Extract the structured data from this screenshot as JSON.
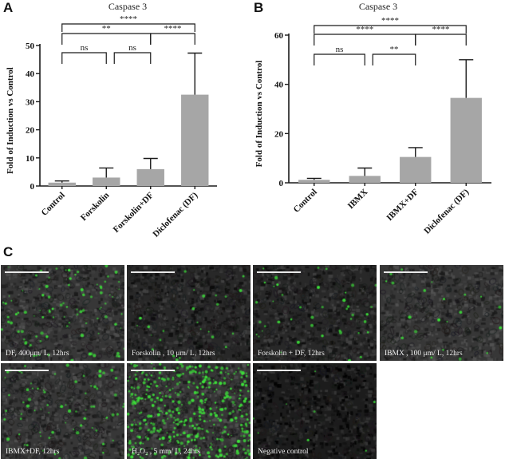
{
  "panels": {
    "a": "A",
    "b": "B",
    "c": "C"
  },
  "colors": {
    "bar": "#a6a6a6",
    "axis": "#1a1a1a",
    "fluorescence": "#3de03a"
  },
  "chart_data": [
    {
      "type": "bar",
      "title": "Caspase 3",
      "ylabel": "Fold of Induction vs Control",
      "xlabel": "",
      "ylim": [
        0,
        50
      ],
      "yticks": [
        0,
        10,
        20,
        30,
        40,
        50
      ],
      "categories": [
        "Control",
        "Forskolin",
        "Forskolin+DF",
        "Diclofenac (DF)"
      ],
      "values": [
        1.2,
        3.0,
        6.0,
        32.5
      ],
      "errors": [
        0.6,
        3.4,
        3.8,
        14.8
      ],
      "grid": false,
      "significance": [
        {
          "from": 0,
          "to": 1,
          "label": "ns",
          "level": 0
        },
        {
          "from": 1,
          "to": 2,
          "label": "ns",
          "level": 0
        },
        {
          "from": 0,
          "to": 2,
          "label": "**",
          "level": 1
        },
        {
          "from": 2,
          "to": 3,
          "label": "****",
          "level": 1
        },
        {
          "from": 0,
          "to": 3,
          "label": "****",
          "level": 2
        }
      ]
    },
    {
      "type": "bar",
      "title": "Caspase 3",
      "ylabel": "Fold of Induction vs Control",
      "xlabel": "",
      "ylim": [
        0,
        60
      ],
      "yticks": [
        0,
        20,
        40,
        60
      ],
      "categories": [
        "Control",
        "IBMX",
        "IBMX+DF",
        "Diclofenac (DF)"
      ],
      "values": [
        1.2,
        2.8,
        10.5,
        34.5
      ],
      "errors": [
        0.6,
        3.2,
        3.8,
        15.5
      ],
      "grid": false,
      "significance": [
        {
          "from": 0,
          "to": 1,
          "label": "ns",
          "level": 0
        },
        {
          "from": 1,
          "to": 2,
          "label": "**",
          "level": 0
        },
        {
          "from": 0,
          "to": 2,
          "label": "****",
          "level": 1
        },
        {
          "from": 2,
          "to": 3,
          "label": "****",
          "level": 1
        },
        {
          "from": 0,
          "to": 3,
          "label": "****",
          "level": 2
        }
      ]
    }
  ],
  "micrographs": [
    {
      "caption": "DF, 400μm/ L, 12hrs",
      "density": 0.22
    },
    {
      "caption": "Forskolin , 10 μm/ L, 12hrs",
      "density": 0.06
    },
    {
      "caption": "Forskolin + DF, 12hrs",
      "density": 0.1
    },
    {
      "caption": "IBMX , 100 μm/ L, 12hrs",
      "density": 0.05
    },
    {
      "caption": "IBMX+DF, 12hrs",
      "density": 0.18
    },
    {
      "caption": "H₂O₂ , 5 mm/ L, 24hrs",
      "density": 1.0
    },
    {
      "caption": "Negative control",
      "density": 0.02
    }
  ]
}
